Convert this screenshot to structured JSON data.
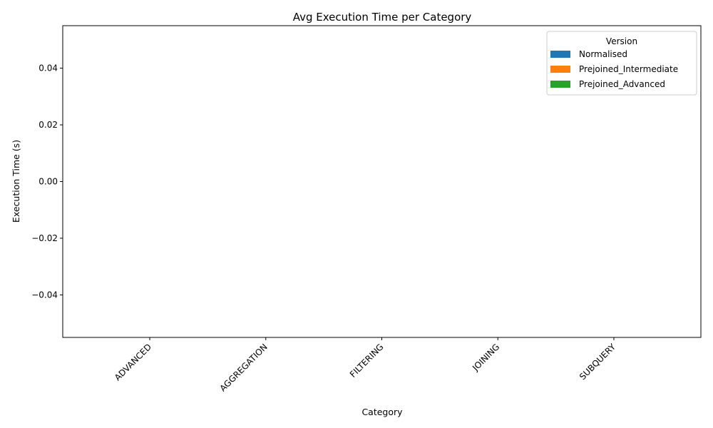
{
  "chart_data": {
    "type": "bar",
    "title": "Avg Execution Time per Category",
    "xlabel": "Category",
    "ylabel": "Execution Time (s)",
    "categories": [
      "ADVANCED",
      "AGGREGATION",
      "FILTERING",
      "JOINING",
      "SUBQUERY"
    ],
    "series": [
      {
        "name": "Normalised",
        "color": "#1f77b4",
        "values": [
          0,
          0,
          0,
          0,
          0
        ]
      },
      {
        "name": "Prejoined_Intermediate",
        "color": "#ff7f0e",
        "values": [
          0,
          0,
          0,
          0,
          0
        ]
      },
      {
        "name": "Prejoined_Advanced",
        "color": "#2ca02c",
        "values": [
          0,
          0,
          0,
          0,
          0
        ]
      }
    ],
    "ylim": [
      -0.055,
      0.055
    ],
    "yticks": [
      -0.04,
      -0.02,
      0.0,
      0.02,
      0.04
    ],
    "ytick_labels": [
      "−0.04",
      "−0.02",
      "0.00",
      "0.02",
      "0.04"
    ],
    "legend": {
      "title": "Version",
      "position": "top-right"
    },
    "grid": false
  }
}
